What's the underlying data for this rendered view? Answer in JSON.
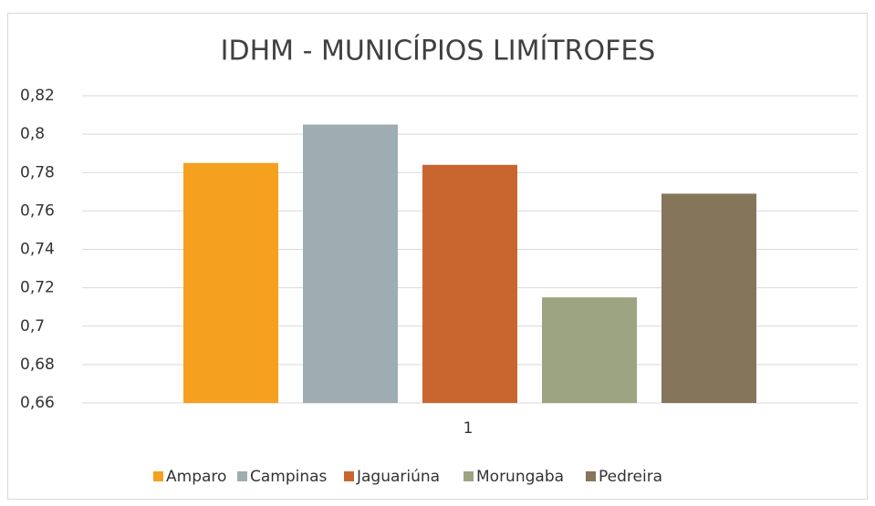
{
  "chart_data": {
    "type": "bar",
    "title": "IDHM - MUNICÍPIOS LIMÍTROFES",
    "categories": [
      "1"
    ],
    "series": [
      {
        "name": "Amparo",
        "color": "#f5a11f",
        "values": [
          0.785
        ]
      },
      {
        "name": "Campinas",
        "color": "#9eadb2",
        "values": [
          0.805
        ]
      },
      {
        "name": "Jaguariúna",
        "color": "#c9662f",
        "values": [
          0.784
        ]
      },
      {
        "name": "Morungaba",
        "color": "#9ca481",
        "values": [
          0.715
        ]
      },
      {
        "name": "Pedreira",
        "color": "#85755a",
        "values": [
          0.769
        ]
      }
    ],
    "ylim": [
      0.66,
      0.82
    ],
    "yticks": [
      {
        "value": 0.66,
        "label": "0,66"
      },
      {
        "value": 0.68,
        "label": "0,68"
      },
      {
        "value": 0.7,
        "label": "0,7"
      },
      {
        "value": 0.72,
        "label": "0,72"
      },
      {
        "value": 0.74,
        "label": "0,74"
      },
      {
        "value": 0.76,
        "label": "0,76"
      },
      {
        "value": 0.78,
        "label": "0,78"
      },
      {
        "value": 0.8,
        "label": "0,8"
      },
      {
        "value": 0.82,
        "label": "0,82"
      }
    ],
    "grid": true,
    "legend": "bottom"
  }
}
